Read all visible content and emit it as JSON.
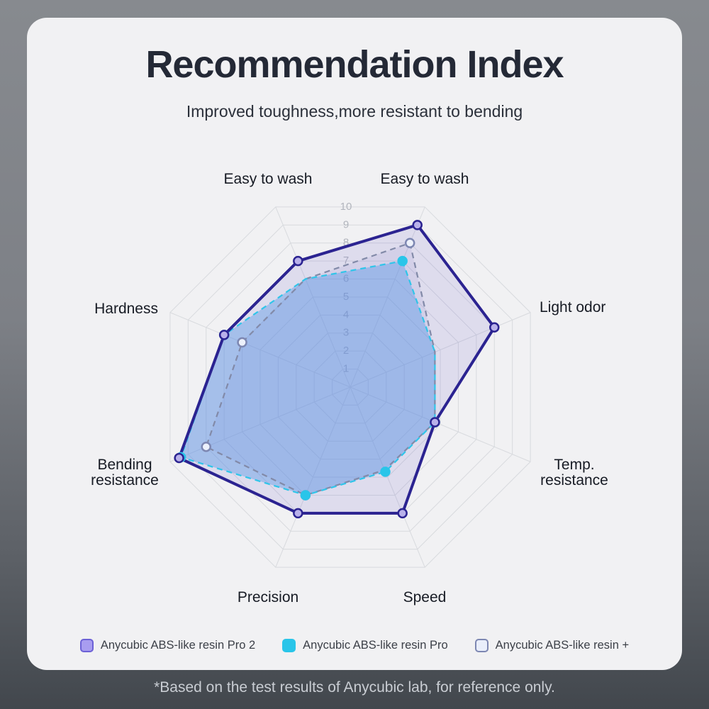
{
  "page": {
    "title": "Recommendation Index",
    "subtitle": "Improved toughness,more resistant to bending",
    "footnote": "*Based on the test results of Anycubic lab, for reference only."
  },
  "chart_data": {
    "type": "radar",
    "title": "Recommendation Index",
    "scale": {
      "min": 0,
      "max": 10,
      "rings": 10,
      "tick_labels": [
        "1",
        "2",
        "3",
        "4",
        "5",
        "6",
        "7",
        "8",
        "9",
        "10"
      ]
    },
    "grid": {
      "shape": "octagon",
      "line_color": "#d8dade",
      "tick_text_color": "#b2b5bd"
    },
    "legend_position": "bottom",
    "axes": [
      {
        "label": "Easy to wash",
        "angle_deg": 67.5
      },
      {
        "label": "Light odor",
        "angle_deg": 22.5
      },
      {
        "label": "Temp.\nresistance",
        "angle_deg": -22.5
      },
      {
        "label": "Speed",
        "angle_deg": -67.5
      },
      {
        "label": "Precision",
        "angle_deg": -112.5
      },
      {
        "label": "Bending\nresistance",
        "angle_deg": -157.5
      },
      {
        "label": "Hardness",
        "angle_deg": 157.5
      },
      {
        "label": "Easy to wash",
        "angle_deg": 112.5
      }
    ],
    "series": [
      {
        "name": "Anycubic ABS-like resin Pro 2",
        "values": [
          9,
          8,
          4.7,
          7,
          7,
          9.5,
          7,
          7
        ],
        "line_color": "#2b2391",
        "line_style": "solid",
        "line_width": 4,
        "fill_color": "rgba(109,94,205,0.14)",
        "marker_fill": "#b9b1ea",
        "marker_stroke": "#2b2391",
        "marker_visible": [
          1,
          1,
          1,
          1,
          1,
          1,
          1,
          1
        ],
        "swatch_fill": "#a89df0",
        "swatch_stroke": "#6c61d6"
      },
      {
        "name": "Anycubic ABS-like resin Pro",
        "values": [
          7,
          4.7,
          4.7,
          4.7,
          6,
          9.4,
          7,
          6
        ],
        "line_color": "#2fc5e9",
        "line_style": "dashed",
        "line_width": 2.2,
        "fill_color": "rgba(85,150,232,0.42)",
        "marker_fill": "#29c5e9",
        "marker_stroke": "#29c5e9",
        "marker_visible": [
          1,
          0,
          1,
          1,
          1,
          1,
          1,
          0
        ],
        "swatch_fill": "#29c5e9",
        "swatch_stroke": "#29c5e9"
      },
      {
        "name": "Anycubic ABS-like resin +",
        "values": [
          8,
          4.7,
          4.7,
          4.6,
          6,
          8,
          6,
          6
        ],
        "line_color": "#828aa8",
        "line_style": "dashed",
        "line_width": 2.2,
        "fill_color": "rgba(120,110,200,0.10)",
        "marker_fill": "#edf1fb",
        "marker_stroke": "#7d87b2",
        "marker_visible": [
          1,
          0,
          1,
          0,
          1,
          1,
          1,
          0
        ],
        "swatch_fill": "#e9eefb",
        "swatch_stroke": "#7d87b2"
      }
    ]
  }
}
